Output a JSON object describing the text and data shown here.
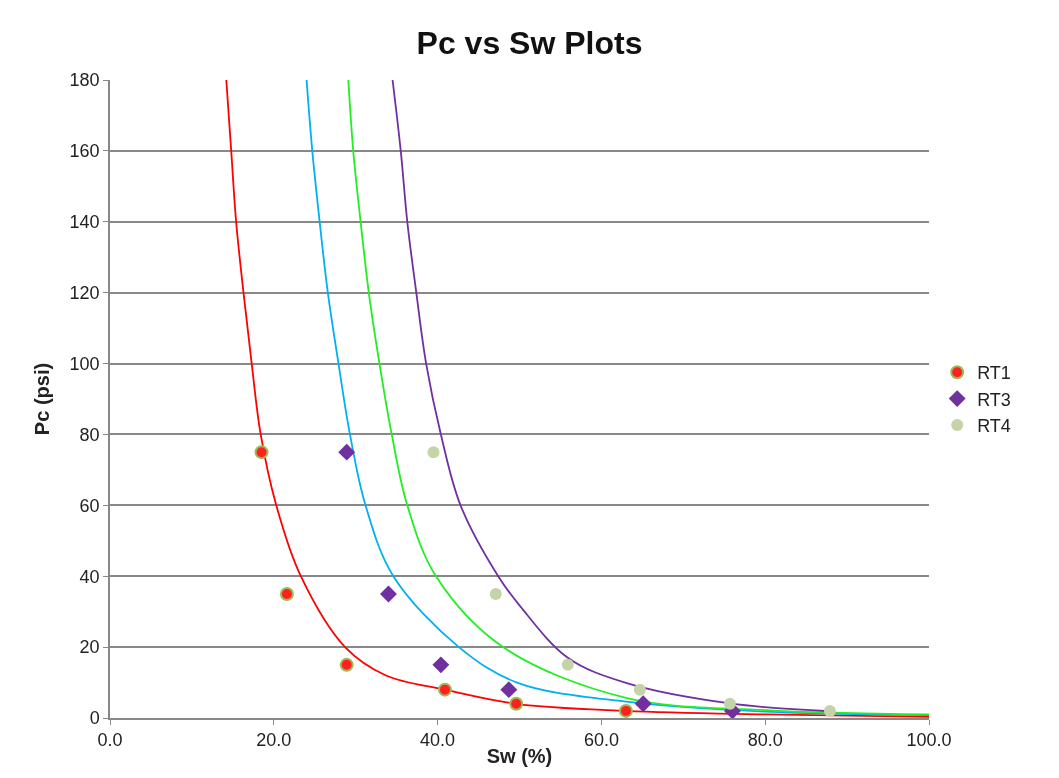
{
  "chart_data": {
    "type": "scatter",
    "title": "Pc vs Sw Plots",
    "xlabel": "Sw (%)",
    "ylabel": "Pc (psi)",
    "xlim": [
      0,
      100
    ],
    "xticks": [
      {
        "value": 0,
        "label": "0.0"
      },
      {
        "value": 20,
        "label": "20.0"
      },
      {
        "value": 40,
        "label": "40.0"
      },
      {
        "value": 60,
        "label": "60.0"
      },
      {
        "value": 80,
        "label": "80.0"
      },
      {
        "value": 100,
        "label": "100.0"
      }
    ],
    "ylim": [
      0,
      180
    ],
    "yticks": [
      0,
      20,
      40,
      60,
      80,
      100,
      120,
      140,
      160,
      180
    ],
    "grid": "y",
    "legend": "right",
    "series": [
      {
        "name": "RT1",
        "marker": "circle",
        "color": "#ff2020",
        "x": [
          18.5,
          21.6,
          28.9,
          40.9,
          49.6,
          63.0
        ],
        "values": [
          75,
          35,
          15,
          8,
          4,
          2
        ]
      },
      {
        "name": "RT3",
        "marker": "diamond",
        "color": "#7030a0",
        "x": [
          28.9,
          34.0,
          40.4,
          48.7,
          65.1,
          76.0
        ],
        "values": [
          75,
          35,
          15,
          8,
          4,
          2
        ]
      },
      {
        "name": "RT4",
        "marker": "circle",
        "color": "#c4d4a8",
        "x": [
          39.5,
          47.1,
          55.9,
          64.7,
          75.7,
          87.9
        ],
        "values": [
          75,
          35,
          15,
          8,
          4,
          2
        ]
      },
      {
        "type": "line",
        "marker": "none",
        "color": "#ff0000",
        "x": [
          14.2,
          14.8,
          15.4,
          16.3,
          17.3,
          18.4,
          20.3,
          23.3,
          28.7,
          33.7,
          40.9,
          49.6,
          63.0,
          80.0,
          100.0
        ],
        "values": [
          180,
          160,
          140,
          120,
          100,
          80,
          60,
          40,
          20,
          12,
          8,
          4,
          2,
          1,
          0.3
        ]
      },
      {
        "type": "line",
        "marker": "none",
        "color": "#00b0f0",
        "x": [
          24.0,
          24.7,
          25.6,
          26.6,
          27.9,
          29.3,
          31.2,
          34.6,
          42.6,
          49.7,
          63.0,
          80.0,
          100.0
        ],
        "values": [
          180,
          160,
          140,
          120,
          100,
          80,
          60,
          40,
          20,
          10,
          4.6,
          1.8,
          0.8
        ]
      },
      {
        "type": "line",
        "marker": "none",
        "color": "#22ee22",
        "x": [
          29.1,
          29.7,
          30.6,
          31.6,
          32.9,
          34.4,
          36.3,
          39.8,
          48.0,
          63.0,
          80.0,
          100.0
        ],
        "values": [
          180,
          160,
          140,
          120,
          100,
          80,
          60,
          40,
          20,
          5.7,
          2.2,
          1.0
        ]
      },
      {
        "type": "line",
        "marker": "none",
        "color": "#7030a0",
        "x": [
          34.5,
          35.5,
          36.3,
          37.4,
          38.6,
          40.4,
          42.8,
          47.4,
          50.1,
          55.9,
          63.0,
          75.7,
          87.9
        ],
        "values": [
          180,
          160,
          140,
          120,
          100,
          80,
          60,
          40,
          31.5,
          17,
          9.9,
          4.1,
          1.9
        ]
      }
    ]
  }
}
